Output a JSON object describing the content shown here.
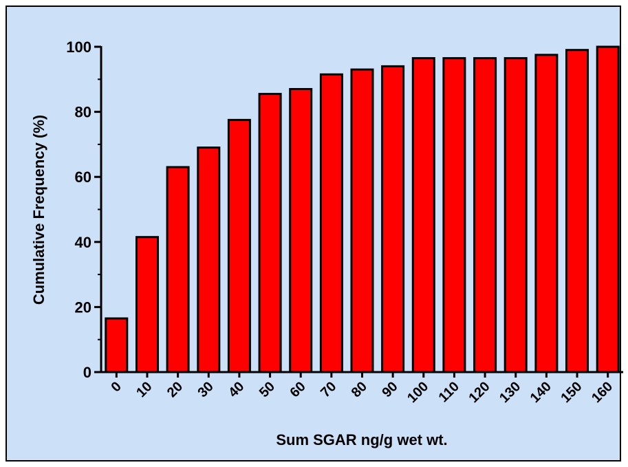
{
  "colors": {
    "background": "#cce0f8",
    "bar_fill": "#ff0000",
    "bar_stroke": "#000000"
  },
  "chart_data": {
    "type": "bar",
    "title": "",
    "xlabel": "Sum SGAR ng/g wet wt.",
    "ylabel": "Cumulative Frequency (%)",
    "categories": [
      "0",
      "10",
      "20",
      "30",
      "40",
      "50",
      "60",
      "70",
      "80",
      "90",
      "100",
      "110",
      "120",
      "130",
      "140",
      "150",
      "160"
    ],
    "values": [
      16.5,
      41.5,
      63,
      69,
      77.5,
      85.5,
      87,
      91.5,
      93,
      94,
      96.5,
      96.5,
      96.5,
      96.5,
      97.5,
      99,
      100
    ],
    "ylim": [
      0,
      100
    ],
    "yticks": [
      0,
      20,
      40,
      60,
      80,
      100
    ],
    "ytick_labels": [
      "0",
      "20",
      "40",
      "60",
      "80",
      "100"
    ],
    "grid": false,
    "legend": "none"
  }
}
